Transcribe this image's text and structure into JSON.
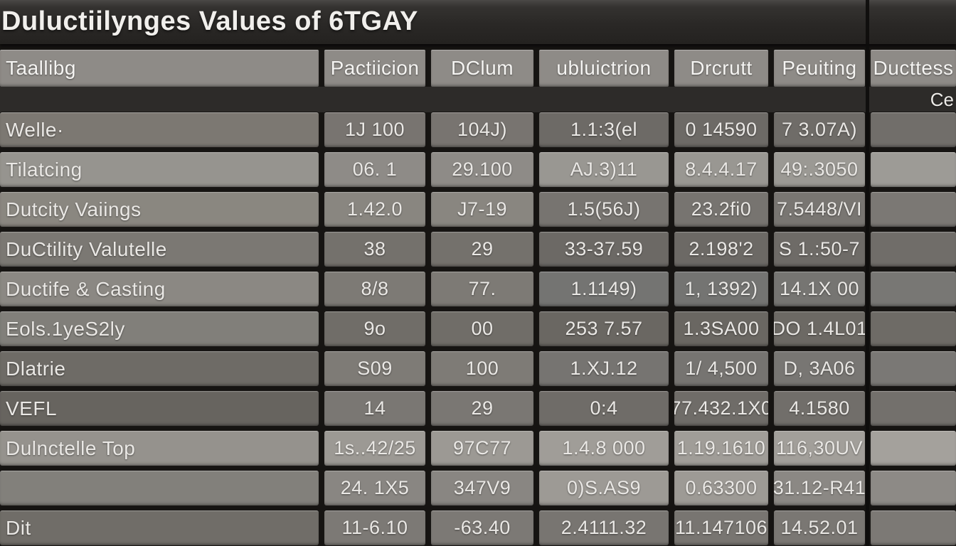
{
  "title": "Duluctiilynges Values of 6TGAY",
  "colors": {
    "background": "#161412",
    "title_bar": "#2a2826",
    "header_bg": "#8e8b87",
    "header_text": "#f5f4f2",
    "cell_text": "#eae8e5"
  },
  "table": {
    "headers": [
      "Taallibg",
      "Pactiicion",
      "DClum",
      "ubluictrion",
      "Drcrutt",
      "Peuiting",
      "Ducttess"
    ],
    "header_wrap": "Ce",
    "rows": [
      {
        "label": "Welle·",
        "cells": [
          "1J 100",
          "104J)",
          "1.1:3(el",
          "0 14590",
          "7 3.07A)"
        ],
        "end": ""
      },
      {
        "label": "Tilatcing",
        "cells": [
          "06. 1",
          "29.100",
          "AJ.3)11",
          "8.4.4.17",
          "49:.3050"
        ],
        "end": ""
      },
      {
        "label": "Dutcity Vaiings",
        "cells": [
          "1.42.0",
          "J7-19",
          "1.5(56J)",
          "23.2fi0",
          "7.5448/VI"
        ],
        "end": ""
      },
      {
        "label": "DuCtility Valutelle",
        "cells": [
          "38",
          "29",
          "33-37.59",
          "2.198'2",
          "S 1.:50-7"
        ],
        "end": ""
      },
      {
        "label": "Ductife & Casting",
        "cells": [
          "8/8",
          "77.",
          "1.1149)",
          "1, 1392)",
          "14.1X 00"
        ],
        "end": ""
      },
      {
        "label": "Eols.1yeS2ly",
        "cells": [
          "9o",
          "00",
          "253 7.57",
          "1.3SA00",
          "DO 1.4L01"
        ],
        "end": ""
      },
      {
        "label": "Dlatrie",
        "cells": [
          "S09",
          "100",
          "1.XJ.12",
          "1/ 4,500",
          "D, 3A06"
        ],
        "end": ""
      },
      {
        "label": "VEFL",
        "cells": [
          "14",
          "29",
          "0:4",
          "77.432.1X0",
          "4.1580"
        ],
        "end": ""
      },
      {
        "label": "Dulnctelle Top",
        "cells": [
          "1s..42/25",
          "97C77",
          "1.4.8 000",
          "1.19.1610",
          "116,30UV"
        ],
        "end": ""
      },
      {
        "label": "",
        "cells": [
          "24. 1X5",
          "347V9",
          "0)S.AS9",
          "0.63300",
          "31.12-R41"
        ],
        "end": ""
      },
      {
        "label": "Dit",
        "cells": [
          "11-6.10",
          "-63.40",
          "2.4111.32",
          "11.147106",
          "14.52.01"
        ],
        "end": ""
      }
    ],
    "row_shades": [
      [
        "#7c7872",
        "#787470",
        "#787470",
        "#6d6a66",
        "#6d6a66",
        "#6f6c68",
        "#716e6a"
      ],
      [
        "#96948f",
        "#8e8b87",
        "#8e8b87",
        "#999792",
        "#999792",
        "#9b9994",
        "#9d9b96"
      ],
      [
        "#8a8780",
        "#898680",
        "#898680",
        "#777470",
        "#777470",
        "#797672",
        "#7b7874"
      ],
      [
        "#7b7873",
        "#74716c",
        "#74716c",
        "#6c6965",
        "#6c6965",
        "#6e6b67",
        "#706d69"
      ],
      [
        "#8b8883",
        "#7d7a75",
        "#7d7a75",
        "#747472",
        "#747472",
        "#767572",
        "#787774"
      ],
      [
        "#817f7a",
        "#706d68",
        "#706d68",
        "#6a6762",
        "#6a6762",
        "#6c6964",
        "#6e6b66"
      ],
      [
        "#6e6b66",
        "#7e7b76",
        "#7e7b76",
        "#767471",
        "#767471",
        "#787673",
        "#7a7875"
      ],
      [
        "#67645f",
        "#7a7773",
        "#7a7773",
        "#6f6c68",
        "#6f6c68",
        "#716e6a",
        "#73706c"
      ],
      [
        "#95928d",
        "#9c9994",
        "#9c9994",
        "#a09d98",
        "#a09d98",
        "#a29f9a",
        "#a4a19c"
      ],
      [
        "#82807b",
        "#898682",
        "#898682",
        "#9d9a95",
        "#9d9a95",
        "#8b8884",
        "#8d8a86"
      ],
      [
        "#706d68",
        "#7c7975",
        "#7c7975",
        "#787571",
        "#787571",
        "#7a7773",
        "#7c7975"
      ]
    ]
  }
}
